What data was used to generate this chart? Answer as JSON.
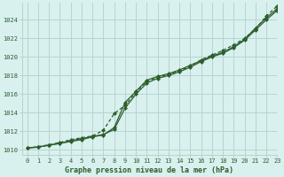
{
  "title": "Graphe pression niveau de la mer (hPa)",
  "background_color": "#d8f0ee",
  "grid_color": "#b8d4d0",
  "text_color": "#2d5e2d",
  "line_color": "#2d5e2d",
  "xlim": [
    -0.5,
    23
  ],
  "ylim": [
    1009.5,
    1025.8
  ],
  "yticks": [
    1010,
    1012,
    1014,
    1016,
    1018,
    1020,
    1022,
    1024
  ],
  "xticks": [
    0,
    1,
    2,
    3,
    4,
    5,
    6,
    7,
    8,
    9,
    10,
    11,
    12,
    13,
    14,
    15,
    16,
    17,
    18,
    19,
    20,
    21,
    22,
    23
  ],
  "series": [
    [
      1010.2,
      1010.3,
      1010.5,
      1010.7,
      1010.9,
      1011.1,
      1011.4,
      1011.6,
      1012.4,
      1015.1,
      1016.3,
      1017.5,
      1017.9,
      1018.2,
      1018.6,
      1019.1,
      1019.6,
      1020.1,
      1020.5,
      1021.1,
      1021.9,
      1023.1,
      1024.2,
      1025.2
    ],
    [
      1010.2,
      1010.35,
      1010.55,
      1010.8,
      1011.1,
      1011.3,
      1011.5,
      1012.1,
      1013.9,
      1014.8,
      1016.2,
      1017.4,
      1017.8,
      1018.1,
      1018.5,
      1019.0,
      1019.7,
      1020.2,
      1020.7,
      1021.3,
      1022.0,
      1023.0,
      1024.4,
      1025.5
    ],
    [
      1010.2,
      1010.3,
      1010.5,
      1010.7,
      1011.0,
      1011.2,
      1011.45,
      1011.65,
      1012.2,
      1014.5,
      1016.0,
      1017.2,
      1017.7,
      1018.0,
      1018.4,
      1018.9,
      1019.5,
      1020.0,
      1020.4,
      1021.0,
      1021.8,
      1022.9,
      1024.0,
      1025.0
    ]
  ],
  "series_styles": [
    {
      "linestyle": "-",
      "marker": "D"
    },
    {
      "linestyle": "--",
      "marker": "D"
    },
    {
      "linestyle": "-",
      "marker": "D"
    }
  ]
}
